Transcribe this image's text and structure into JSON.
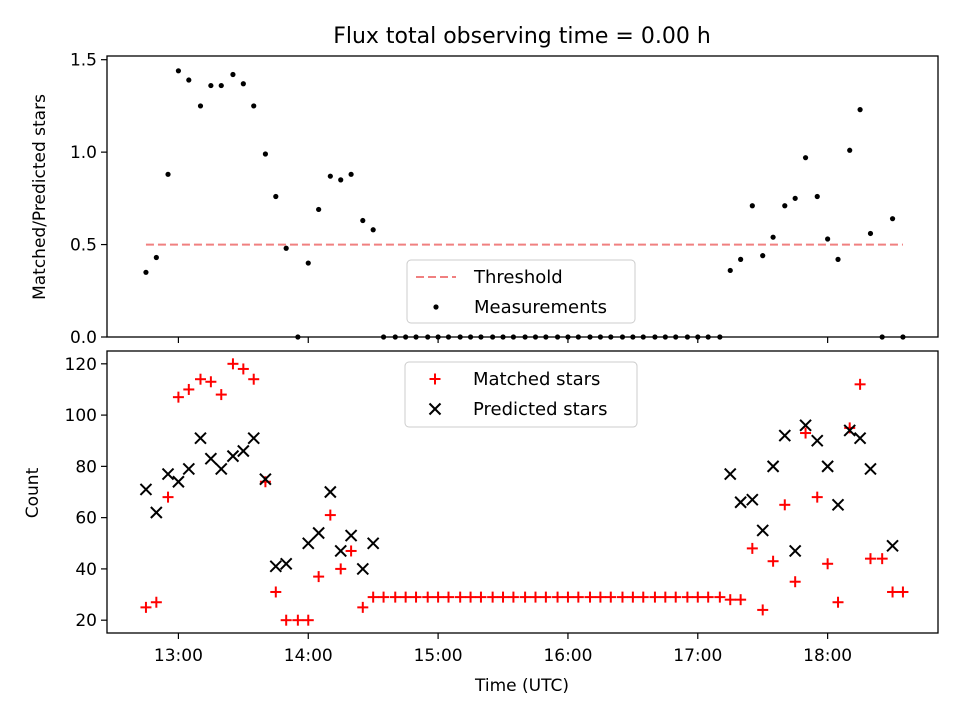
{
  "chart_data": [
    {
      "type": "scatter",
      "title": "Flux total observing time = 0.00 h",
      "xlabel": "",
      "ylabel": "Matched/Predicted stars",
      "x_unit": "hours (UTC)",
      "xlim": [
        12.45,
        18.85
      ],
      "ylim": [
        0,
        1.52
      ],
      "yticks": [
        0.0,
        0.5,
        1.0,
        1.5
      ],
      "ytick_labels": [
        "0.0",
        "0.5",
        "1.0",
        "1.5"
      ],
      "xtick_labels_shown": false,
      "legend": {
        "placement": "lower-center",
        "entries": [
          "Threshold",
          "Measurements"
        ]
      },
      "grid": false,
      "series": [
        {
          "name": "Threshold",
          "style": "dashed-line",
          "color": "#f08080",
          "x": [
            12.75,
            18.58
          ],
          "y": [
            0.5,
            0.5
          ]
        },
        {
          "name": "Measurements",
          "style": "dot",
          "color": "#000000",
          "points": [
            [
              12.75,
              0.35
            ],
            [
              12.83,
              0.43
            ],
            [
              12.92,
              0.88
            ],
            [
              13.0,
              1.44
            ],
            [
              13.08,
              1.39
            ],
            [
              13.17,
              1.25
            ],
            [
              13.25,
              1.36
            ],
            [
              13.33,
              1.36
            ],
            [
              13.42,
              1.42
            ],
            [
              13.5,
              1.37
            ],
            [
              13.58,
              1.25
            ],
            [
              13.67,
              0.99
            ],
            [
              13.75,
              0.76
            ],
            [
              13.83,
              0.48
            ],
            [
              13.92,
              0.0
            ],
            [
              14.0,
              0.4
            ],
            [
              14.08,
              0.69
            ],
            [
              14.17,
              0.87
            ],
            [
              14.25,
              0.85
            ],
            [
              14.33,
              0.88
            ],
            [
              14.42,
              0.63
            ],
            [
              14.5,
              0.58
            ],
            [
              14.58,
              0.0
            ],
            [
              14.67,
              0.0
            ],
            [
              14.75,
              0.0
            ],
            [
              14.83,
              0.0
            ],
            [
              14.92,
              0.0
            ],
            [
              15.0,
              0.0
            ],
            [
              15.08,
              0.0
            ],
            [
              15.17,
              0.0
            ],
            [
              15.25,
              0.0
            ],
            [
              15.33,
              0.0
            ],
            [
              15.42,
              0.0
            ],
            [
              15.5,
              0.0
            ],
            [
              15.58,
              0.0
            ],
            [
              15.67,
              0.0
            ],
            [
              15.75,
              0.0
            ],
            [
              15.83,
              0.0
            ],
            [
              15.92,
              0.0
            ],
            [
              16.0,
              0.0
            ],
            [
              16.08,
              0.0
            ],
            [
              16.17,
              0.0
            ],
            [
              16.25,
              0.0
            ],
            [
              16.33,
              0.0
            ],
            [
              16.42,
              0.0
            ],
            [
              16.5,
              0.0
            ],
            [
              16.58,
              0.0
            ],
            [
              16.67,
              0.0
            ],
            [
              16.75,
              0.0
            ],
            [
              16.83,
              0.0
            ],
            [
              16.92,
              0.0
            ],
            [
              17.0,
              0.0
            ],
            [
              17.08,
              0.0
            ],
            [
              17.17,
              0.0
            ],
            [
              17.25,
              0.36
            ],
            [
              17.33,
              0.42
            ],
            [
              17.42,
              0.71
            ],
            [
              17.5,
              0.44
            ],
            [
              17.58,
              0.54
            ],
            [
              17.67,
              0.71
            ],
            [
              17.75,
              0.75
            ],
            [
              17.83,
              0.97
            ],
            [
              17.92,
              0.76
            ],
            [
              18.0,
              0.53
            ],
            [
              18.08,
              0.42
            ],
            [
              18.17,
              1.01
            ],
            [
              18.25,
              1.23
            ],
            [
              18.33,
              0.56
            ],
            [
              18.42,
              0.0
            ],
            [
              18.5,
              0.64
            ],
            [
              18.58,
              0.0
            ]
          ]
        }
      ]
    },
    {
      "type": "scatter",
      "title": "",
      "xlabel": "Time (UTC)",
      "ylabel": "Count",
      "x_unit": "hours (UTC)",
      "xlim": [
        12.45,
        18.85
      ],
      "ylim": [
        15,
        125
      ],
      "yticks": [
        20,
        40,
        60,
        80,
        100,
        120
      ],
      "ytick_labels": [
        "20",
        "40",
        "60",
        "80",
        "100",
        "120"
      ],
      "xticks": [
        13,
        14,
        15,
        16,
        17,
        18
      ],
      "xtick_labels": [
        "13:00",
        "14:00",
        "15:00",
        "16:00",
        "17:00",
        "18:00"
      ],
      "legend": {
        "placement": "upper-center",
        "entries": [
          "Matched stars",
          "Predicted stars"
        ]
      },
      "grid": false,
      "series": [
        {
          "name": "Matched stars",
          "marker": "plus",
          "color": "#ff0000",
          "points": [
            [
              12.75,
              25
            ],
            [
              12.83,
              27
            ],
            [
              12.92,
              68
            ],
            [
              13.0,
              107
            ],
            [
              13.08,
              110
            ],
            [
              13.17,
              114
            ],
            [
              13.25,
              113
            ],
            [
              13.33,
              108
            ],
            [
              13.42,
              120
            ],
            [
              13.5,
              118
            ],
            [
              13.58,
              114
            ],
            [
              13.67,
              74
            ],
            [
              13.75,
              31
            ],
            [
              13.83,
              20
            ],
            [
              13.92,
              20
            ],
            [
              14.0,
              20
            ],
            [
              14.08,
              37
            ],
            [
              14.17,
              61
            ],
            [
              14.25,
              40
            ],
            [
              14.33,
              47
            ],
            [
              14.42,
              25
            ],
            [
              14.5,
              29
            ],
            [
              14.58,
              29
            ],
            [
              14.67,
              29
            ],
            [
              14.75,
              29
            ],
            [
              14.83,
              29
            ],
            [
              14.92,
              29
            ],
            [
              15.0,
              29
            ],
            [
              15.08,
              29
            ],
            [
              15.17,
              29
            ],
            [
              15.25,
              29
            ],
            [
              15.33,
              29
            ],
            [
              15.42,
              29
            ],
            [
              15.5,
              29
            ],
            [
              15.58,
              29
            ],
            [
              15.67,
              29
            ],
            [
              15.75,
              29
            ],
            [
              15.83,
              29
            ],
            [
              15.92,
              29
            ],
            [
              16.0,
              29
            ],
            [
              16.08,
              29
            ],
            [
              16.17,
              29
            ],
            [
              16.25,
              29
            ],
            [
              16.33,
              29
            ],
            [
              16.42,
              29
            ],
            [
              16.5,
              29
            ],
            [
              16.58,
              29
            ],
            [
              16.67,
              29
            ],
            [
              16.75,
              29
            ],
            [
              16.83,
              29
            ],
            [
              16.92,
              29
            ],
            [
              17.0,
              29
            ],
            [
              17.08,
              29
            ],
            [
              17.17,
              29
            ],
            [
              17.25,
              28
            ],
            [
              17.33,
              28
            ],
            [
              17.42,
              48
            ],
            [
              17.5,
              24
            ],
            [
              17.58,
              43
            ],
            [
              17.67,
              65
            ],
            [
              17.75,
              35
            ],
            [
              17.83,
              93
            ],
            [
              17.92,
              68
            ],
            [
              18.0,
              42
            ],
            [
              18.08,
              27
            ],
            [
              18.17,
              95
            ],
            [
              18.25,
              112
            ],
            [
              18.33,
              44
            ],
            [
              18.42,
              44
            ],
            [
              18.5,
              31
            ],
            [
              18.58,
              31
            ]
          ]
        },
        {
          "name": "Predicted stars",
          "marker": "x",
          "color": "#000000",
          "points": [
            [
              12.75,
              71
            ],
            [
              12.83,
              62
            ],
            [
              12.92,
              77
            ],
            [
              13.0,
              74
            ],
            [
              13.08,
              79
            ],
            [
              13.17,
              91
            ],
            [
              13.25,
              83
            ],
            [
              13.33,
              79
            ],
            [
              13.42,
              84
            ],
            [
              13.5,
              86
            ],
            [
              13.58,
              91
            ],
            [
              13.67,
              75
            ],
            [
              13.75,
              41
            ],
            [
              13.83,
              42
            ],
            [
              14.0,
              50
            ],
            [
              14.08,
              54
            ],
            [
              14.17,
              70
            ],
            [
              14.25,
              47
            ],
            [
              14.33,
              53
            ],
            [
              14.42,
              40
            ],
            [
              14.5,
              50
            ],
            [
              17.25,
              77
            ],
            [
              17.33,
              66
            ],
            [
              17.42,
              67
            ],
            [
              17.5,
              55
            ],
            [
              17.58,
              80
            ],
            [
              17.67,
              92
            ],
            [
              17.75,
              47
            ],
            [
              17.83,
              96
            ],
            [
              17.92,
              90
            ],
            [
              18.0,
              80
            ],
            [
              18.08,
              65
            ],
            [
              18.17,
              94
            ],
            [
              18.25,
              91
            ],
            [
              18.33,
              79
            ],
            [
              18.5,
              49
            ]
          ]
        }
      ]
    }
  ]
}
